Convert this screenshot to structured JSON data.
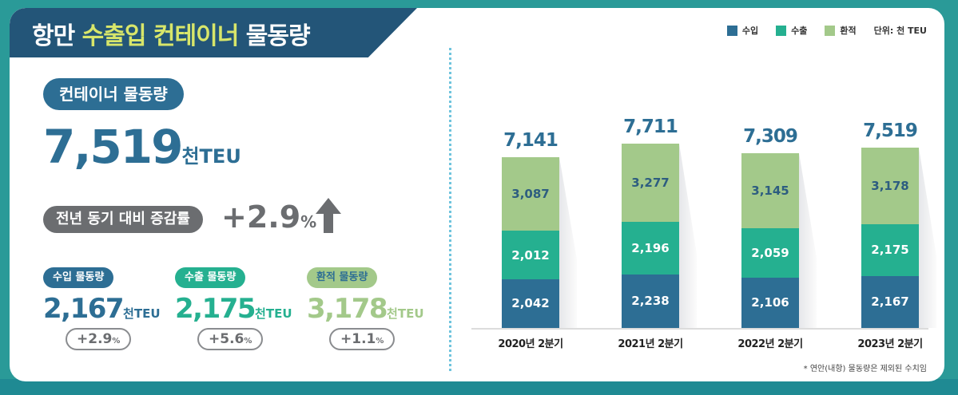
{
  "title": {
    "part1": "항만 ",
    "highlight": "수출입 컨테이너",
    "part2": " 물동량"
  },
  "summary": {
    "label": "컨테이너 물동량",
    "value": "7,519",
    "unit": "천TEU",
    "yoy_label": "전년 동기 대비 증감률",
    "yoy_value": "+2.9",
    "yoy_pct": "%"
  },
  "breakdown": [
    {
      "label": "수입 물동량",
      "value": "2,167",
      "unit": "천TEU",
      "change": "+2.9",
      "pct": "%",
      "color": "#2d6e94"
    },
    {
      "label": "수출 물동량",
      "value": "2,175",
      "unit": "천TEU",
      "change": "+5.6",
      "pct": "%",
      "color": "#25b090"
    },
    {
      "label": "환적 물동량",
      "value": "3,178",
      "unit": "천TEU",
      "change": "+1.1",
      "pct": "%",
      "color": "#a3c98a"
    }
  ],
  "legend": {
    "items": [
      {
        "label": "수입",
        "color": "#2d6e94"
      },
      {
        "label": "수출",
        "color": "#25b090"
      },
      {
        "label": "환적",
        "color": "#a3c98a"
      }
    ],
    "unit": "단위: 천 TEU"
  },
  "footnote": "* 연안(내항) 물동량은 제외된 수치임",
  "chart_data": {
    "type": "bar",
    "stacked": true,
    "title": "항만 수출입 컨테이너 물동량",
    "unit": "천 TEU",
    "categories": [
      "2020년 2분기",
      "2021년 2분기",
      "2022년 2분기",
      "2023년 2분기"
    ],
    "series": [
      {
        "name": "수입",
        "values": [
          2042,
          2238,
          2106,
          2167
        ],
        "color": "#2d6e94"
      },
      {
        "name": "수출",
        "values": [
          2012,
          2196,
          2059,
          2175
        ],
        "color": "#25b090"
      },
      {
        "name": "환적",
        "values": [
          3087,
          3277,
          3145,
          3178
        ],
        "color": "#a3c98a"
      }
    ],
    "totals": [
      7141,
      7711,
      7309,
      7519
    ],
    "labels": {
      "totals": [
        "7,141",
        "7,711",
        "7,309",
        "7,519"
      ],
      "import": [
        "2,042",
        "2,238",
        "2,106",
        "2,167"
      ],
      "export": [
        "2,012",
        "2,196",
        "2,059",
        "2,175"
      ],
      "transship": [
        "3,087",
        "3,277",
        "3,145",
        "3,178"
      ]
    },
    "legend_position": "top-right",
    "grid": false
  }
}
